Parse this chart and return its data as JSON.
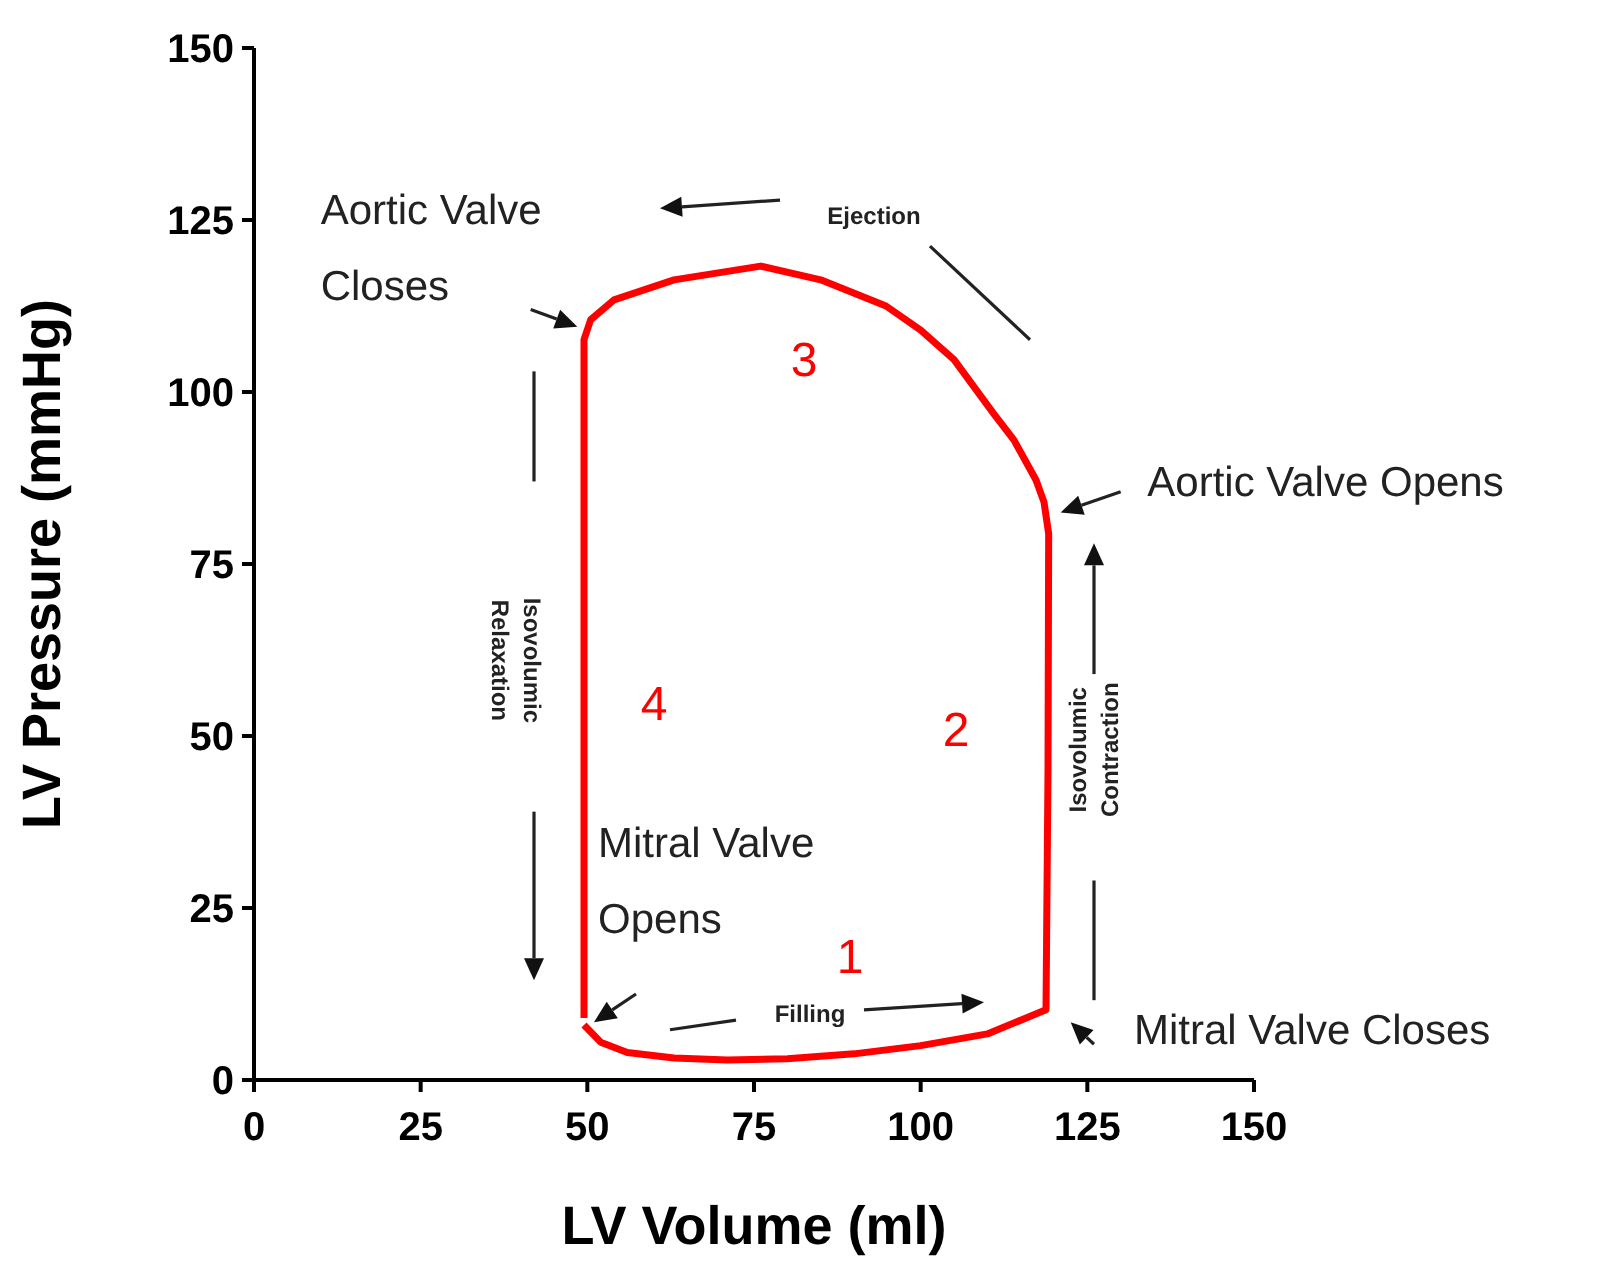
{
  "chart_data": {
    "type": "line",
    "xlabel": "LV Volume (ml)",
    "ylabel": "LV Pressure (mmHg)",
    "xlim": [
      0,
      150
    ],
    "ylim": [
      0,
      150
    ],
    "xticks": [
      0,
      25,
      50,
      75,
      100,
      125,
      150
    ],
    "yticks": [
      0,
      25,
      50,
      75,
      100,
      125,
      150
    ],
    "grid": false,
    "marker": "none",
    "line_style": "solid",
    "series": [
      {
        "color": "#ff0000",
        "x": [
          49.5,
          52,
          56,
          63,
          71,
          80,
          90,
          100,
          110,
          118.8,
          119.1,
          119.2,
          118.5,
          117.3,
          114,
          111,
          105,
          100,
          94.8,
          85,
          76,
          63,
          54,
          50.5,
          49.5,
          49.5,
          49.5
        ],
        "values": [
          8,
          5.5,
          4,
          3.2,
          2.9,
          3.1,
          3.8,
          5,
          6.7,
          10.2,
          45,
          79.4,
          84,
          87.2,
          93,
          96.8,
          104.7,
          109,
          112.5,
          116.3,
          118.3,
          116.3,
          113.4,
          110.5,
          107.6,
          50,
          9
        ]
      }
    ],
    "annotations": [
      "Ejection",
      "Aortic Valve Closes",
      "Aortic Valve Opens",
      "Mitral Valve Closes",
      "Mitral Valve Opens",
      "Filling",
      "Isovolumic Relaxation",
      "Isovolumic Contraction",
      "1",
      "2",
      "3",
      "4"
    ]
  }
}
